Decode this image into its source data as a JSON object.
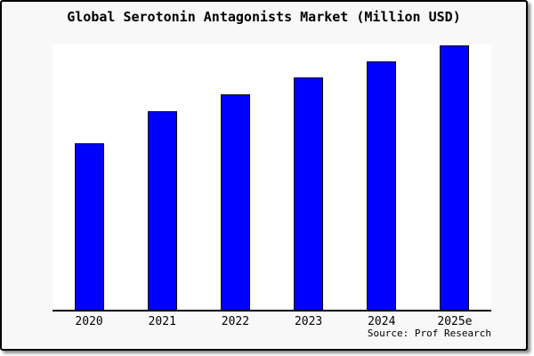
{
  "title": "Global Serotonin Antagonists Market (Million USD)",
  "source_note": "Source: Prof Research",
  "colors": {
    "bar_fill": "#0000ff",
    "bar_border": "#000000",
    "canvas_background": "#f8f8f8",
    "plot_background": "#ffffff",
    "frame_border": "#000000",
    "text": "#000000"
  },
  "chart_data": {
    "type": "bar",
    "title": "Global Serotonin Antagonists Market (Million USD)",
    "categories": [
      "2020",
      "2021",
      "2022",
      "2023",
      "2024",
      "2025e"
    ],
    "values": [
      62.7,
      75.0,
      81.3,
      87.7,
      93.7,
      99.7
    ],
    "values_note": "No y-axis ticks or data labels are shown in the chart; values are bar heights measured as percent of the plot-area height (tallest bar 2025e spans ~100% of the plot area).",
    "xlabel": "",
    "ylabel": "",
    "ylim": [
      0,
      100
    ],
    "grid": false,
    "legend": false,
    "y_axis_visible": false,
    "x_axis_line": true,
    "annotation": "Source: Prof Research"
  }
}
